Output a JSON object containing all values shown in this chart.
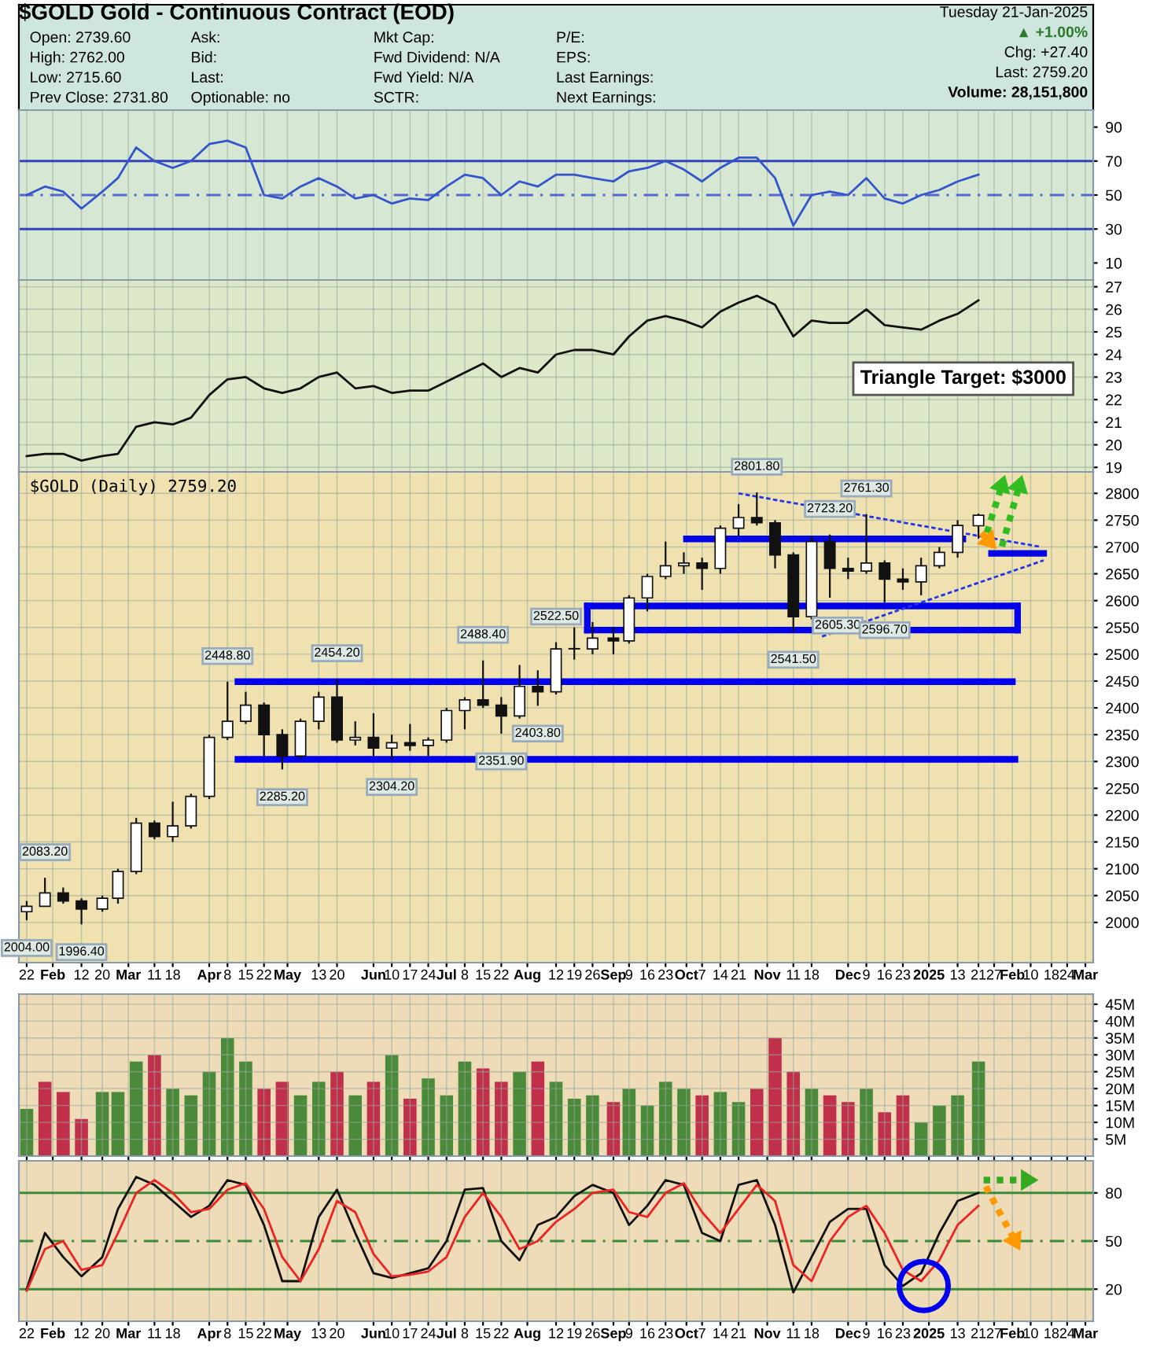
{
  "chart_data": [
    {
      "type": "other",
      "title": "$GOLD Gold - Continuous Contract (EOD)",
      "annotations": [
        "Open: 2739.60",
        "High: 2762.00",
        "Low: 2715.60",
        "Prev Close: 2731.80",
        "Ask:",
        "Bid:",
        "Last:",
        "Optionable: no",
        "Mkt Cap:",
        "Fwd Dividend: N/A",
        "Fwd Yield: N/A",
        "SCTR:",
        "P/E:",
        "EPS:",
        "Last Earnings:",
        "Next Earnings:",
        "Tuesday 21-Jan-2025",
        "▲ +1.00%",
        "Chg: +27.40",
        "Last: 2759.20",
        "Volume: 28,151,800"
      ]
    },
    {
      "type": "line",
      "x": [
        "2024-01-22",
        "2024-01-29",
        "2024-02-05",
        "2024-02-12",
        "2024-02-20",
        "2024-02-26",
        "2024-03-04",
        "2024-03-11",
        "2024-03-18",
        "2024-03-25",
        "2024-04-01",
        "2024-04-08",
        "2024-04-15",
        "2024-04-22",
        "2024-04-29",
        "2024-05-06",
        "2024-05-13",
        "2024-05-20",
        "2024-05-27",
        "2024-06-03",
        "2024-06-10",
        "2024-06-17",
        "2024-06-24",
        "2024-07-01",
        "2024-07-08",
        "2024-07-15",
        "2024-07-22",
        "2024-07-29",
        "2024-08-05",
        "2024-08-12",
        "2024-08-19",
        "2024-08-26",
        "2024-09-03",
        "2024-09-09",
        "2024-09-16",
        "2024-09-23",
        "2024-09-30",
        "2024-10-07",
        "2024-10-14",
        "2024-10-21",
        "2024-10-28",
        "2024-11-04",
        "2024-11-11",
        "2024-11-18",
        "2024-11-25",
        "2024-12-02",
        "2024-12-09",
        "2024-12-16",
        "2024-12-23",
        "2024-12-30",
        "2025-01-06",
        "2025-01-13",
        "2025-01-21"
      ],
      "series": [
        {
          "color": "#3355cc",
          "values": [
            50,
            55,
            52,
            42,
            52,
            60,
            78,
            70,
            66,
            70,
            80,
            82,
            78,
            50,
            48,
            55,
            60,
            55,
            48,
            50,
            45,
            48,
            47,
            55,
            62,
            60,
            50,
            58,
            55,
            62,
            62,
            60,
            58,
            64,
            66,
            70,
            65,
            58,
            66,
            72,
            72,
            60,
            32,
            50,
            52,
            50,
            60,
            48,
            45,
            50,
            53,
            58,
            62
          ]
        }
      ],
      "ylim": [
        0,
        100
      ],
      "yticks": [
        10,
        30,
        50,
        70,
        90
      ],
      "grid": "x",
      "tick_labels": "y",
      "xlim": [
        "2024-01-19",
        "2025-03-06"
      ],
      "ref_lines": [
        {
          "axis": "y",
          "value": 70,
          "color": "#3344bb",
          "line_style": "solid"
        },
        {
          "axis": "y",
          "value": 50,
          "color": "#5566cc",
          "line_style": "dashed"
        },
        {
          "axis": "y",
          "value": 30,
          "color": "#3344bb",
          "line_style": "solid"
        }
      ]
    },
    {
      "type": "line",
      "x": [
        "2024-01-22",
        "2024-01-29",
        "2024-02-05",
        "2024-02-12",
        "2024-02-20",
        "2024-02-26",
        "2024-03-04",
        "2024-03-11",
        "2024-03-18",
        "2024-03-25",
        "2024-04-01",
        "2024-04-08",
        "2024-04-15",
        "2024-04-22",
        "2024-04-29",
        "2024-05-06",
        "2024-05-13",
        "2024-05-20",
        "2024-05-27",
        "2024-06-03",
        "2024-06-10",
        "2024-06-17",
        "2024-06-24",
        "2024-07-01",
        "2024-07-08",
        "2024-07-15",
        "2024-07-22",
        "2024-07-29",
        "2024-08-05",
        "2024-08-12",
        "2024-08-19",
        "2024-08-26",
        "2024-09-03",
        "2024-09-09",
        "2024-09-16",
        "2024-09-23",
        "2024-09-30",
        "2024-10-07",
        "2024-10-14",
        "2024-10-21",
        "2024-10-28",
        "2024-11-04",
        "2024-11-11",
        "2024-11-18",
        "2024-11-25",
        "2024-12-02",
        "2024-12-09",
        "2024-12-16",
        "2024-12-23",
        "2024-12-30",
        "2025-01-06",
        "2025-01-13",
        "2025-01-21"
      ],
      "series": [
        {
          "color": "#111111",
          "values": [
            19.5,
            19.6,
            19.6,
            19.3,
            19.5,
            19.6,
            20.8,
            21.0,
            20.9,
            21.2,
            22.2,
            22.9,
            23.0,
            22.5,
            22.3,
            22.5,
            23.0,
            23.2,
            22.5,
            22.6,
            22.3,
            22.4,
            22.4,
            22.8,
            23.2,
            23.6,
            23.0,
            23.4,
            23.2,
            24.0,
            24.2,
            24.2,
            24.0,
            24.8,
            25.5,
            25.7,
            25.5,
            25.2,
            25.9,
            26.3,
            26.6,
            26.2,
            24.8,
            25.5,
            25.4,
            25.4,
            26.0,
            25.3,
            25.2,
            25.1,
            25.5,
            25.8,
            26.4
          ]
        }
      ],
      "ylim": [
        18.8,
        27.3
      ],
      "yticks": [
        19,
        20,
        21,
        22,
        23,
        24,
        25,
        26,
        27
      ],
      "grid": true,
      "tick_labels": "y",
      "xlim": [
        "2024-01-19",
        "2025-03-06"
      ]
    },
    {
      "type": "candlestick",
      "x": [
        "2024-01-22",
        "2024-01-29",
        "2024-02-05",
        "2024-02-12",
        "2024-02-20",
        "2024-02-26",
        "2024-03-04",
        "2024-03-11",
        "2024-03-18",
        "2024-03-25",
        "2024-04-01",
        "2024-04-08",
        "2024-04-15",
        "2024-04-22",
        "2024-04-29",
        "2024-05-06",
        "2024-05-13",
        "2024-05-20",
        "2024-05-27",
        "2024-06-03",
        "2024-06-10",
        "2024-06-17",
        "2024-06-24",
        "2024-07-01",
        "2024-07-08",
        "2024-07-15",
        "2024-07-22",
        "2024-07-29",
        "2024-08-05",
        "2024-08-12",
        "2024-08-19",
        "2024-08-26",
        "2024-09-03",
        "2024-09-09",
        "2024-09-16",
        "2024-09-23",
        "2024-09-30",
        "2024-10-07",
        "2024-10-14",
        "2024-10-21",
        "2024-10-28",
        "2024-11-04",
        "2024-11-11",
        "2024-11-18",
        "2024-11-25",
        "2024-12-02",
        "2024-12-09",
        "2024-12-16",
        "2024-12-23",
        "2024-12-30",
        "2025-01-06",
        "2025-01-13",
        "2025-01-21"
      ],
      "ohlc": [
        [
          2020,
          2040,
          2004,
          2030
        ],
        [
          2030,
          2083.2,
          2030,
          2055
        ],
        [
          2055,
          2065,
          2035,
          2040
        ],
        [
          2040,
          2045,
          1996.4,
          2025
        ],
        [
          2025,
          2050,
          2020,
          2045
        ],
        [
          2045,
          2100,
          2035,
          2095
        ],
        [
          2095,
          2195,
          2090,
          2185
        ],
        [
          2185,
          2190,
          2155,
          2160
        ],
        [
          2160,
          2225,
          2150,
          2180
        ],
        [
          2180,
          2240,
          2175,
          2235
        ],
        [
          2235,
          2350,
          2230,
          2345
        ],
        [
          2345,
          2448.8,
          2340,
          2375
        ],
        [
          2375,
          2430,
          2370,
          2405
        ],
        [
          2405,
          2410,
          2310,
          2350
        ],
        [
          2350,
          2360,
          2285.2,
          2310
        ],
        [
          2310,
          2380,
          2305,
          2375
        ],
        [
          2375,
          2430,
          2360,
          2420
        ],
        [
          2420,
          2454.2,
          2335,
          2340
        ],
        [
          2340,
          2375,
          2330,
          2345
        ],
        [
          2345,
          2390,
          2310,
          2325
        ],
        [
          2325,
          2350,
          2304.2,
          2335
        ],
        [
          2335,
          2370,
          2320,
          2330
        ],
        [
          2330,
          2345,
          2310,
          2340
        ],
        [
          2340,
          2400,
          2335,
          2395
        ],
        [
          2395,
          2420,
          2360,
          2415
        ],
        [
          2415,
          2488.4,
          2400,
          2405
        ],
        [
          2405,
          2420,
          2351.9,
          2385
        ],
        [
          2385,
          2480,
          2380,
          2440
        ],
        [
          2440,
          2470,
          2403.8,
          2430
        ],
        [
          2430,
          2522.5,
          2425,
          2510
        ],
        [
          2510,
          2550,
          2490,
          2510
        ],
        [
          2510,
          2560,
          2500,
          2530
        ],
        [
          2530,
          2550,
          2500,
          2525
        ],
        [
          2525,
          2610,
          2520,
          2605
        ],
        [
          2605,
          2650,
          2580,
          2645
        ],
        [
          2645,
          2710,
          2640,
          2665
        ],
        [
          2665,
          2690,
          2650,
          2670
        ],
        [
          2670,
          2680,
          2620,
          2660
        ],
        [
          2660,
          2740,
          2650,
          2735
        ],
        [
          2735,
          2780,
          2720,
          2755
        ],
        [
          2755,
          2801.8,
          2740,
          2745
        ],
        [
          2745,
          2750,
          2660,
          2685
        ],
        [
          2685,
          2690,
          2541.5,
          2570
        ],
        [
          2570,
          2720,
          2565,
          2710
        ],
        [
          2710,
          2723.2,
          2605.3,
          2660
        ],
        [
          2660,
          2680,
          2640,
          2655
        ],
        [
          2655,
          2761.3,
          2650,
          2670
        ],
        [
          2670,
          2675,
          2596.7,
          2640
        ],
        [
          2640,
          2660,
          2620,
          2635
        ],
        [
          2635,
          2680,
          2610,
          2665
        ],
        [
          2665,
          2700,
          2660,
          2690
        ],
        [
          2690,
          2750,
          2680,
          2740
        ],
        [
          2739.6,
          2762,
          2715.6,
          2759.2
        ]
      ],
      "series": [
        {
          "type": "line",
          "x": [
            "2024-04-12",
            "2025-02-03"
          ],
          "values": [
            2448.8,
            2448.8
          ],
          "color": "#0000ee"
        },
        {
          "type": "line",
          "x": [
            "2024-04-12",
            "2025-02-04"
          ],
          "values": [
            2304,
            2304
          ],
          "color": "#0101ec"
        },
        {
          "type": "line",
          "x": [
            "2024-08-24",
            "2025-02-05"
          ],
          "values": [
            2545,
            2545
          ],
          "color": "#0202ea"
        },
        {
          "type": "line",
          "x": [
            "2024-08-24",
            "2025-02-05"
          ],
          "values": [
            2590,
            2590
          ],
          "color": "#0303e8"
        },
        {
          "type": "line",
          "x": [
            "2024-10-01",
            "2025-01-15"
          ],
          "values": [
            2715,
            2715
          ],
          "color": "#0404e6"
        },
        {
          "type": "line",
          "x": [
            "2025-01-26",
            "2025-02-15"
          ],
          "values": [
            2688,
            2688
          ],
          "color": "#0606e2"
        },
        {
          "type": "line",
          "x": [
            "2024-10-21",
            "2025-02-14"
          ],
          "values": [
            2800,
            2700
          ],
          "color": "#2233ee",
          "line_style": "dashed"
        },
        {
          "type": "line",
          "x": [
            "2024-11-22",
            "2025-02-15"
          ],
          "values": [
            2533,
            2675
          ],
          "color": "#2233ee",
          "line_style": "dashed"
        }
      ],
      "ylim": [
        1925,
        2840
      ],
      "yticks": [
        2000,
        2050,
        2100,
        2150,
        2200,
        2250,
        2300,
        2350,
        2400,
        2450,
        2500,
        2550,
        2600,
        2650,
        2700,
        2750,
        2800
      ],
      "grid": true,
      "xlim": [
        "2024-01-19",
        "2025-03-06"
      ],
      "xticks": [
        {
          "value": "2024-01-22",
          "label": "22"
        },
        {
          "value": "2024-02-01",
          "label": "Feb"
        },
        {
          "value": "2024-02-12",
          "label": "12"
        },
        {
          "value": "2024-02-20",
          "label": "20"
        },
        {
          "value": "2024-03-01",
          "label": "Mar"
        },
        {
          "value": "2024-03-11",
          "label": "11"
        },
        {
          "value": "2024-03-18",
          "label": "18"
        },
        {
          "value": "2024-04-01",
          "label": "Apr"
        },
        {
          "value": "2024-04-08",
          "label": "8"
        },
        {
          "value": "2024-04-15",
          "label": "15"
        },
        {
          "value": "2024-04-22",
          "label": "22"
        },
        {
          "value": "2024-05-01",
          "label": "May"
        },
        {
          "value": "2024-05-13",
          "label": "13"
        },
        {
          "value": "2024-05-20",
          "label": "20"
        },
        {
          "value": "2024-06-03",
          "label": "Jun"
        },
        {
          "value": "2024-06-10",
          "label": "10"
        },
        {
          "value": "2024-06-17",
          "label": "17"
        },
        {
          "value": "2024-06-24",
          "label": "24"
        },
        {
          "value": "2024-07-01",
          "label": "Jul"
        },
        {
          "value": "2024-07-08",
          "label": "8"
        },
        {
          "value": "2024-07-15",
          "label": "15"
        },
        {
          "value": "2024-07-22",
          "label": "22"
        },
        {
          "value": "2024-08-01",
          "label": "Aug"
        },
        {
          "value": "2024-08-12",
          "label": "12"
        },
        {
          "value": "2024-08-19",
          "label": "19"
        },
        {
          "value": "2024-08-26",
          "label": "26"
        },
        {
          "value": "2024-09-03",
          "label": "Sep"
        },
        {
          "value": "2024-09-09",
          "label": "9"
        },
        {
          "value": "2024-09-16",
          "label": "16"
        },
        {
          "value": "2024-09-23",
          "label": "23"
        },
        {
          "value": "2024-10-01",
          "label": "Oct"
        },
        {
          "value": "2024-10-07",
          "label": "7"
        },
        {
          "value": "2024-10-14",
          "label": "14"
        },
        {
          "value": "2024-10-21",
          "label": "21"
        },
        {
          "value": "2024-11-01",
          "label": "Nov"
        },
        {
          "value": "2024-11-11",
          "label": "11"
        },
        {
          "value": "2024-11-18",
          "label": "18"
        },
        {
          "value": "2024-12-02",
          "label": "Dec"
        },
        {
          "value": "2024-12-09",
          "label": "9"
        },
        {
          "value": "2024-12-16",
          "label": "16"
        },
        {
          "value": "2024-12-23",
          "label": "23"
        },
        {
          "value": "2025-01-02",
          "label": "2025"
        },
        {
          "value": "2025-01-13",
          "label": "13"
        },
        {
          "value": "2025-01-21",
          "label": "21"
        },
        {
          "value": "2025-01-27",
          "label": "27"
        },
        {
          "value": "2025-02-03",
          "label": "Feb"
        },
        {
          "value": "2025-02-10",
          "label": "10"
        },
        {
          "value": "2025-02-18",
          "label": "18"
        },
        {
          "value": "2025-02-24",
          "label": "24"
        },
        {
          "value": "2025-03-03",
          "label": "Mar"
        }
      ],
      "annotations": [
        "$GOLD (Daily) 2759.20",
        "Triangle Target: $3000",
        {
          "text": "2004.00",
          "x": "2024-01-22",
          "y": 2004
        },
        {
          "text": "2083.20",
          "x": "2024-01-29",
          "y": 2083.2
        },
        {
          "text": "1996.40",
          "x": "2024-02-12",
          "y": 1996.4
        },
        {
          "text": "2448.80",
          "x": "2024-04-08",
          "y": 2448.8
        },
        {
          "text": "2285.20",
          "x": "2024-04-29",
          "y": 2285.2
        },
        {
          "text": "2454.20",
          "x": "2024-05-20",
          "y": 2454.2
        },
        {
          "text": "2304.20",
          "x": "2024-06-10",
          "y": 2304.2
        },
        {
          "text": "2488.40",
          "x": "2024-07-15",
          "y": 2488.4
        },
        {
          "text": "2351.90",
          "x": "2024-07-22",
          "y": 2351.9
        },
        {
          "text": "2403.80",
          "x": "2024-08-05",
          "y": 2403.8
        },
        {
          "text": "2522.50",
          "x": "2024-08-12",
          "y": 2522.5
        },
        {
          "text": "2801.80",
          "x": "2024-10-28",
          "y": 2801.8
        },
        {
          "text": "2541.50",
          "x": "2024-11-11",
          "y": 2541.5
        },
        {
          "text": "2723.20",
          "x": "2024-11-25",
          "y": 2723.2
        },
        {
          "text": "2605.30",
          "x": "2024-11-28",
          "y": 2605.3
        },
        {
          "text": "2761.30",
          "x": "2024-12-09",
          "y": 2761.3
        },
        {
          "text": "2596.70",
          "x": "2024-12-16",
          "y": 2596.7
        }
      ]
    },
    {
      "type": "bar",
      "x": [
        "2024-01-22",
        "2024-01-29",
        "2024-02-05",
        "2024-02-12",
        "2024-02-20",
        "2024-02-26",
        "2024-03-04",
        "2024-03-11",
        "2024-03-18",
        "2024-03-25",
        "2024-04-01",
        "2024-04-08",
        "2024-04-15",
        "2024-04-22",
        "2024-04-29",
        "2024-05-06",
        "2024-05-13",
        "2024-05-20",
        "2024-05-27",
        "2024-06-03",
        "2024-06-10",
        "2024-06-17",
        "2024-06-24",
        "2024-07-01",
        "2024-07-08",
        "2024-07-15",
        "2024-07-22",
        "2024-07-29",
        "2024-08-05",
        "2024-08-12",
        "2024-08-19",
        "2024-08-26",
        "2024-09-03",
        "2024-09-09",
        "2024-09-16",
        "2024-09-23",
        "2024-09-30",
        "2024-10-07",
        "2024-10-14",
        "2024-10-21",
        "2024-10-28",
        "2024-11-04",
        "2024-11-11",
        "2024-11-18",
        "2024-11-25",
        "2024-12-02",
        "2024-12-09",
        "2024-12-16",
        "2024-12-23",
        "2024-12-30",
        "2025-01-06",
        "2025-01-13",
        "2025-01-21"
      ],
      "values": [
        14,
        22,
        19,
        11,
        19,
        19,
        28,
        30,
        20,
        18,
        25,
        35,
        28,
        20,
        22,
        18,
        22,
        25,
        18,
        22,
        30,
        17,
        23,
        18,
        28,
        26,
        22,
        25,
        28,
        22,
        17,
        18,
        16,
        20,
        15,
        22,
        20,
        18,
        19,
        16,
        20,
        35,
        25,
        20,
        18,
        16,
        20,
        13,
        18,
        10,
        15,
        18,
        28
      ],
      "colors": [
        "#4a8a3a",
        "#c0304a",
        "#c0304a",
        "#c0304a",
        "#4a8a3a",
        "#4a8a3a",
        "#4a8a3a",
        "#c0304a",
        "#4a8a3a",
        "#4a8a3a",
        "#4a8a3a",
        "#4a8a3a",
        "#4a8a3a",
        "#c0304a",
        "#c0304a",
        "#4a8a3a",
        "#4a8a3a",
        "#c0304a",
        "#4a8a3a",
        "#c0304a",
        "#4a8a3a",
        "#c0304a",
        "#4a8a3a",
        "#4a8a3a",
        "#4a8a3a",
        "#c0304a",
        "#c0304a",
        "#4a8a3a",
        "#c0304a",
        "#4a8a3a",
        "#4a8a3a",
        "#4a8a3a",
        "#c0304a",
        "#4a8a3a",
        "#4a8a3a",
        "#4a8a3a",
        "#4a8a3a",
        "#c0304a",
        "#4a8a3a",
        "#4a8a3a",
        "#c0304a",
        "#c0304a",
        "#c0304a",
        "#4a8a3a",
        "#c0304a",
        "#c0304a",
        "#4a8a3a",
        "#c0304a",
        "#c0304a",
        "#4a8a3a",
        "#4a8a3a",
        "#4a8a3a",
        "#4a8a3a"
      ],
      "ylim": [
        0,
        48
      ],
      "yticks": [
        {
          "value": 5,
          "label": "5M"
        },
        {
          "value": 10,
          "label": "10M"
        },
        {
          "value": 15,
          "label": "15M"
        },
        {
          "value": 20,
          "label": "20M"
        },
        {
          "value": 25,
          "label": "25M"
        },
        {
          "value": 30,
          "label": "30M"
        },
        {
          "value": 35,
          "label": "35M"
        },
        {
          "value": 40,
          "label": "40M"
        },
        {
          "value": 45,
          "label": "45M"
        }
      ],
      "grid": true,
      "tick_labels": "y",
      "xlim": [
        "2024-01-19",
        "2025-03-06"
      ]
    },
    {
      "type": "line",
      "x": [
        "2024-01-22",
        "2024-01-29",
        "2024-02-05",
        "2024-02-12",
        "2024-02-20",
        "2024-02-26",
        "2024-03-04",
        "2024-03-11",
        "2024-03-18",
        "2024-03-25",
        "2024-04-01",
        "2024-04-08",
        "2024-04-15",
        "2024-04-22",
        "2024-04-29",
        "2024-05-06",
        "2024-05-13",
        "2024-05-20",
        "2024-05-27",
        "2024-06-03",
        "2024-06-10",
        "2024-06-17",
        "2024-06-24",
        "2024-07-01",
        "2024-07-08",
        "2024-07-15",
        "2024-07-22",
        "2024-07-29",
        "2024-08-05",
        "2024-08-12",
        "2024-08-19",
        "2024-08-26",
        "2024-09-03",
        "2024-09-09",
        "2024-09-16",
        "2024-09-23",
        "2024-09-30",
        "2024-10-07",
        "2024-10-14",
        "2024-10-21",
        "2024-10-28",
        "2024-11-04",
        "2024-11-11",
        "2024-11-18",
        "2024-11-25",
        "2024-12-02",
        "2024-12-09",
        "2024-12-16",
        "2024-12-23",
        "2024-12-30",
        "2025-01-06",
        "2025-01-13",
        "2025-01-21"
      ],
      "series": [
        {
          "color": "#111111",
          "values": [
            20,
            55,
            40,
            28,
            40,
            70,
            90,
            85,
            75,
            65,
            72,
            88,
            85,
            60,
            25,
            25,
            65,
            82,
            55,
            30,
            27,
            30,
            33,
            50,
            82,
            83,
            50,
            38,
            60,
            65,
            78,
            85,
            80,
            60,
            72,
            88,
            85,
            55,
            50,
            85,
            88,
            60,
            18,
            40,
            62,
            70,
            70,
            35,
            22,
            30,
            55,
            75,
            80
          ]
        },
        {
          "color": "#ee2222",
          "values": [
            19,
            45,
            50,
            32,
            35,
            55,
            80,
            88,
            80,
            68,
            70,
            82,
            86,
            70,
            40,
            25,
            45,
            75,
            68,
            42,
            28,
            29,
            31,
            40,
            65,
            80,
            65,
            45,
            50,
            62,
            70,
            80,
            82,
            68,
            65,
            80,
            86,
            68,
            55,
            70,
            85,
            75,
            35,
            25,
            50,
            65,
            72,
            55,
            32,
            25,
            38,
            60,
            72
          ]
        },
        {
          "type": "scatter",
          "x": [
            "2024-12-31"
          ],
          "values": [
            22
          ],
          "color": "#0000ee",
          "marker": "circle"
        }
      ],
      "ylim": [
        0,
        100
      ],
      "yticks": [
        20,
        50,
        80
      ],
      "grid": "x",
      "xlim": [
        "2024-01-19",
        "2025-03-06"
      ],
      "xticks": [
        {
          "value": "2024-01-22",
          "label": "22"
        },
        {
          "value": "2024-02-01",
          "label": "Feb"
        },
        {
          "value": "2024-02-12",
          "label": "12"
        },
        {
          "value": "2024-02-20",
          "label": "20"
        },
        {
          "value": "2024-03-01",
          "label": "Mar"
        },
        {
          "value": "2024-03-11",
          "label": "11"
        },
        {
          "value": "2024-03-18",
          "label": "18"
        },
        {
          "value": "2024-04-01",
          "label": "Apr"
        },
        {
          "value": "2024-04-08",
          "label": "8"
        },
        {
          "value": "2024-04-15",
          "label": "15"
        },
        {
          "value": "2024-04-22",
          "label": "22"
        },
        {
          "value": "2024-05-01",
          "label": "May"
        },
        {
          "value": "2024-05-13",
          "label": "13"
        },
        {
          "value": "2024-05-20",
          "label": "20"
        },
        {
          "value": "2024-06-03",
          "label": "Jun"
        },
        {
          "value": "2024-06-10",
          "label": "10"
        },
        {
          "value": "2024-06-17",
          "label": "17"
        },
        {
          "value": "2024-06-24",
          "label": "24"
        },
        {
          "value": "2024-07-01",
          "label": "Jul"
        },
        {
          "value": "2024-07-08",
          "label": "8"
        },
        {
          "value": "2024-07-15",
          "label": "15"
        },
        {
          "value": "2024-07-22",
          "label": "22"
        },
        {
          "value": "2024-08-01",
          "label": "Aug"
        },
        {
          "value": "2024-08-12",
          "label": "12"
        },
        {
          "value": "2024-08-19",
          "label": "19"
        },
        {
          "value": "2024-08-26",
          "label": "26"
        },
        {
          "value": "2024-09-03",
          "label": "Sep"
        },
        {
          "value": "2024-09-09",
          "label": "9"
        },
        {
          "value": "2024-09-16",
          "label": "16"
        },
        {
          "value": "2024-09-23",
          "label": "23"
        },
        {
          "value": "2024-10-01",
          "label": "Oct"
        },
        {
          "value": "2024-10-07",
          "label": "7"
        },
        {
          "value": "2024-10-14",
          "label": "14"
        },
        {
          "value": "2024-10-21",
          "label": "21"
        },
        {
          "value": "2024-11-01",
          "label": "Nov"
        },
        {
          "value": "2024-11-11",
          "label": "11"
        },
        {
          "value": "2024-11-18",
          "label": "18"
        },
        {
          "value": "2024-12-02",
          "label": "Dec"
        },
        {
          "value": "2024-12-09",
          "label": "9"
        },
        {
          "value": "2024-12-16",
          "label": "16"
        },
        {
          "value": "2024-12-23",
          "label": "23"
        },
        {
          "value": "2025-01-02",
          "label": "2025"
        },
        {
          "value": "2025-01-13",
          "label": "13"
        },
        {
          "value": "2025-01-21",
          "label": "21"
        },
        {
          "value": "2025-01-27",
          "label": "27"
        },
        {
          "value": "2025-02-03",
          "label": "Feb"
        },
        {
          "value": "2025-02-10",
          "label": "10"
        },
        {
          "value": "2025-02-18",
          "label": "18"
        },
        {
          "value": "2025-02-24",
          "label": "24"
        },
        {
          "value": "2025-03-03",
          "label": "Mar"
        }
      ],
      "ref_lines": [
        {
          "axis": "y",
          "value": 80,
          "color": "#3a8a3a",
          "line_style": "solid"
        },
        {
          "axis": "y",
          "value": 50,
          "color": "#3a8a3a",
          "line_style": "dashed"
        },
        {
          "axis": "y",
          "value": 20,
          "color": "#3a8a3a",
          "line_style": "solid"
        }
      ]
    }
  ]
}
